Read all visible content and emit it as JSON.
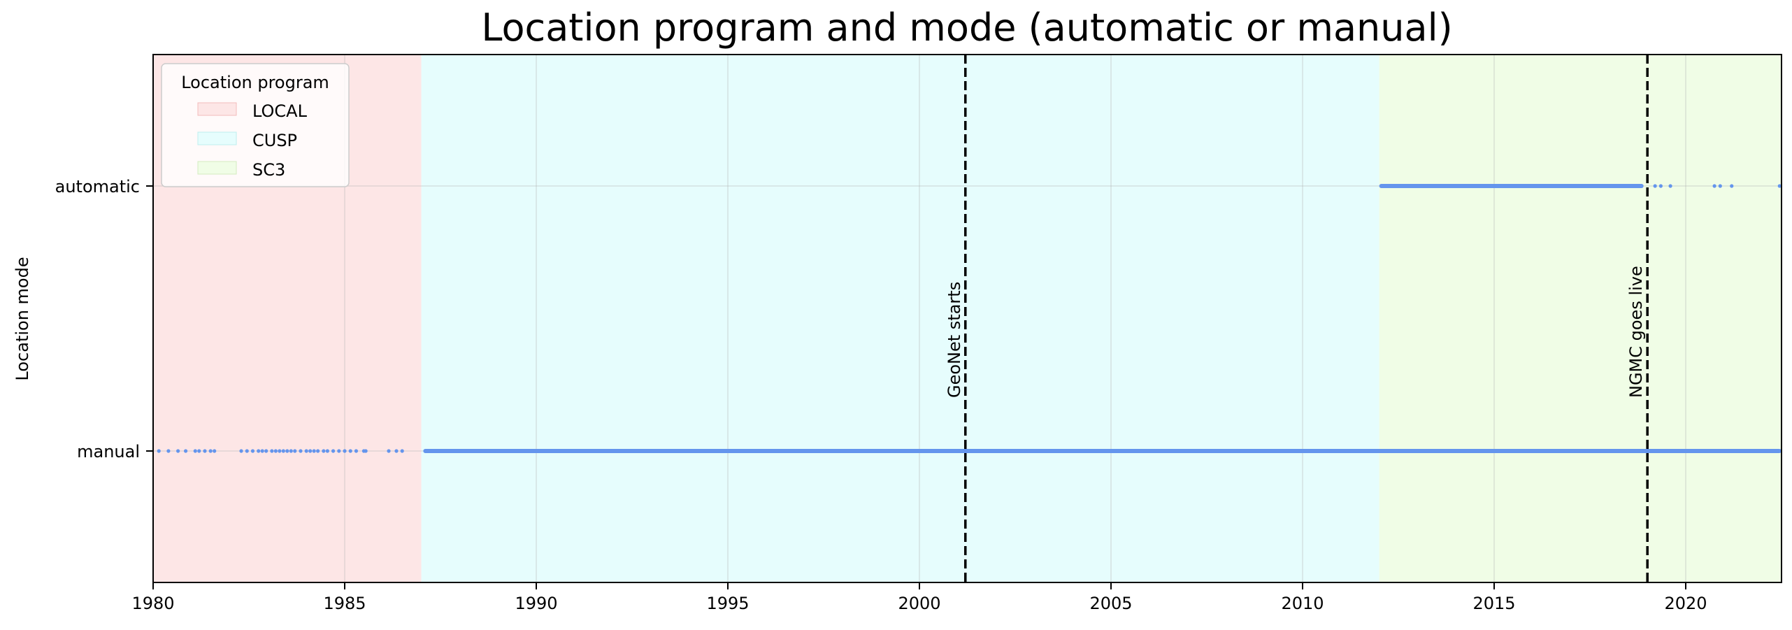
{
  "chart_data": {
    "type": "scatter",
    "title": "Location program and mode (automatic or manual)",
    "xlabel": "",
    "ylabel": "Location mode",
    "xlim": [
      1980,
      2022.5
    ],
    "xticks": [
      "1980",
      "1985",
      "1990",
      "1995",
      "2000",
      "2005",
      "2010",
      "2015",
      "2020"
    ],
    "yticks": [
      "automatic",
      "manual"
    ],
    "grid": true,
    "legend": {
      "title": "Location program",
      "placement": "top-left",
      "entries": [
        {
          "label": "LOCAL",
          "color": "#fde6e6"
        },
        {
          "label": "CUSP",
          "color": "#e6fdfd"
        },
        {
          "label": "SC3",
          "color": "#f0fde6"
        }
      ]
    },
    "program_spans": [
      {
        "name": "LOCAL",
        "start": 1980.0,
        "end": 1987.0,
        "color": "#fde6e6"
      },
      {
        "name": "CUSP",
        "start": 1987.0,
        "end": 2012.0,
        "color": "#e6fdfd"
      },
      {
        "name": "SC3",
        "start": 2012.0,
        "end": 2022.5,
        "color": "#f0fde6"
      }
    ],
    "events": [
      {
        "label": "GeoNet starts",
        "x": 2001.2
      },
      {
        "label": "NGMC goes live",
        "x": 2019.0
      }
    ],
    "series": [
      {
        "y": "manual",
        "color": "#6495ed",
        "dense_ranges": [
          [
            1987.05,
            2022.5
          ]
        ],
        "scattered_points": [
          1980.15,
          1980.4,
          1980.65,
          1980.85,
          1981.1,
          1981.2,
          1981.35,
          1981.5,
          1981.6,
          1982.3,
          1982.45,
          1982.6,
          1982.75,
          1982.85,
          1982.95,
          1983.1,
          1983.2,
          1983.3,
          1983.4,
          1983.5,
          1983.6,
          1983.7,
          1983.85,
          1984.0,
          1984.1,
          1984.2,
          1984.3,
          1984.45,
          1984.55,
          1984.7,
          1984.85,
          1985.0,
          1985.15,
          1985.3,
          1985.5,
          1985.55,
          1986.15,
          1986.35,
          1986.5
        ]
      },
      {
        "y": "automatic",
        "color": "#6495ed",
        "dense_ranges": [
          [
            2012.0,
            2018.9
          ]
        ],
        "scattered_points": [
          2019.2,
          2019.35,
          2019.6,
          2020.75,
          2020.9,
          2021.2,
          2022.45
        ]
      }
    ]
  }
}
